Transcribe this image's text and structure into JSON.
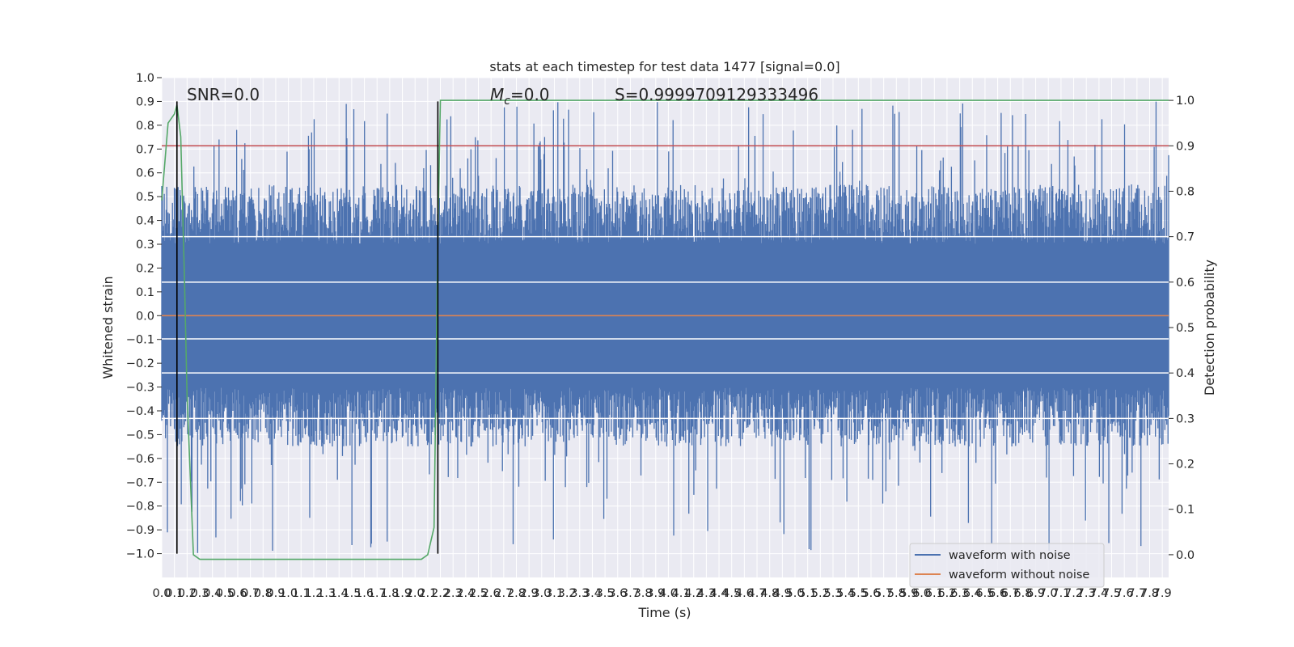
{
  "chart_data": {
    "type": "line",
    "title": "stats at each timestep for test data 1477 [signal=0.0]",
    "xlabel": "Time (s)",
    "ylabel": "Whitened strain",
    "y2label": "Detection probability",
    "xlim": [
      0.0,
      7.95
    ],
    "ylim": [
      -1.1,
      1.0
    ],
    "y2lim": [
      -0.05,
      1.05
    ],
    "x_ticks": [
      0.0,
      0.1,
      0.2,
      0.3,
      0.4,
      0.5,
      0.6,
      0.7,
      0.8,
      0.9,
      1.0,
      1.1,
      1.2,
      1.3,
      1.4,
      1.5,
      1.6,
      1.7,
      1.8,
      1.9,
      2.0,
      2.1,
      2.2,
      2.3,
      2.4,
      2.5,
      2.6,
      2.7,
      2.8,
      2.9,
      3.0,
      3.1,
      3.2,
      3.3,
      3.4,
      3.5,
      3.6,
      3.7,
      3.8,
      3.9,
      4.0,
      4.1,
      4.2,
      4.3,
      4.4,
      4.5,
      4.6,
      4.7,
      4.8,
      4.9,
      5.0,
      5.1,
      5.2,
      5.3,
      5.4,
      5.5,
      5.6,
      5.7,
      5.8,
      5.9,
      6.0,
      6.1,
      6.2,
      6.3,
      6.4,
      6.5,
      6.6,
      6.7,
      6.8,
      6.9,
      7.0,
      7.1,
      7.2,
      7.3,
      7.4,
      7.5,
      7.6,
      7.7,
      7.8,
      7.9
    ],
    "y_ticks": [
      -1.0,
      -0.9,
      -0.8,
      -0.7,
      -0.6,
      -0.5,
      -0.4,
      -0.3,
      -0.2,
      -0.1,
      0.0,
      0.1,
      0.2,
      0.3,
      0.4,
      0.5,
      0.6,
      0.7,
      0.8,
      0.9,
      1.0
    ],
    "y2_ticks": [
      0.0,
      0.1,
      0.2,
      0.3,
      0.4,
      0.5,
      0.6,
      0.7,
      0.8,
      0.9,
      1.0
    ],
    "grid": true,
    "legend_position": "lower-right",
    "colors": {
      "background": "#eaeaf2",
      "grid": "#ffffff",
      "noise": "#4c72b0",
      "clean": "#dd8452",
      "probability": "#55a868",
      "threshold": "#c44e52",
      "markers": "#000000"
    },
    "series": [
      {
        "name": "waveform with noise",
        "type": "dense-noise",
        "amplitude_envelope": [
          -0.55,
          0.55
        ],
        "peak_max": 0.9,
        "peak_min": -1.0
      },
      {
        "name": "waveform without noise",
        "x": [
          0.0,
          7.95
        ],
        "y": [
          0.0,
          0.0
        ]
      }
    ],
    "probability_series": {
      "x": [
        0.0,
        0.05,
        0.1,
        0.12,
        0.15,
        0.18,
        0.2,
        0.25,
        0.3,
        0.35,
        0.4,
        0.5,
        1.0,
        1.5,
        2.0,
        2.05,
        2.1,
        2.15,
        2.18,
        2.2,
        2.22,
        2.25,
        2.3,
        7.95
      ],
      "y": [
        0.78,
        0.95,
        0.97,
        0.99,
        0.92,
        0.6,
        0.35,
        0.0,
        -0.01,
        -0.01,
        -0.01,
        -0.01,
        -0.01,
        -0.01,
        -0.01,
        -0.01,
        0.0,
        0.06,
        0.7,
        1.0,
        1.0,
        1.0,
        1.0,
        1.0
      ]
    },
    "threshold_line": {
      "y2": 0.9
    },
    "horizontal_lines_y2": [
      0.7,
      0.6,
      0.475,
      0.4,
      0.3
    ],
    "vertical_markers_x": [
      0.12,
      2.18
    ],
    "annotations": [
      "SNR=0.0",
      "M_c=0.0",
      "S=0.9999709129333496"
    ]
  }
}
